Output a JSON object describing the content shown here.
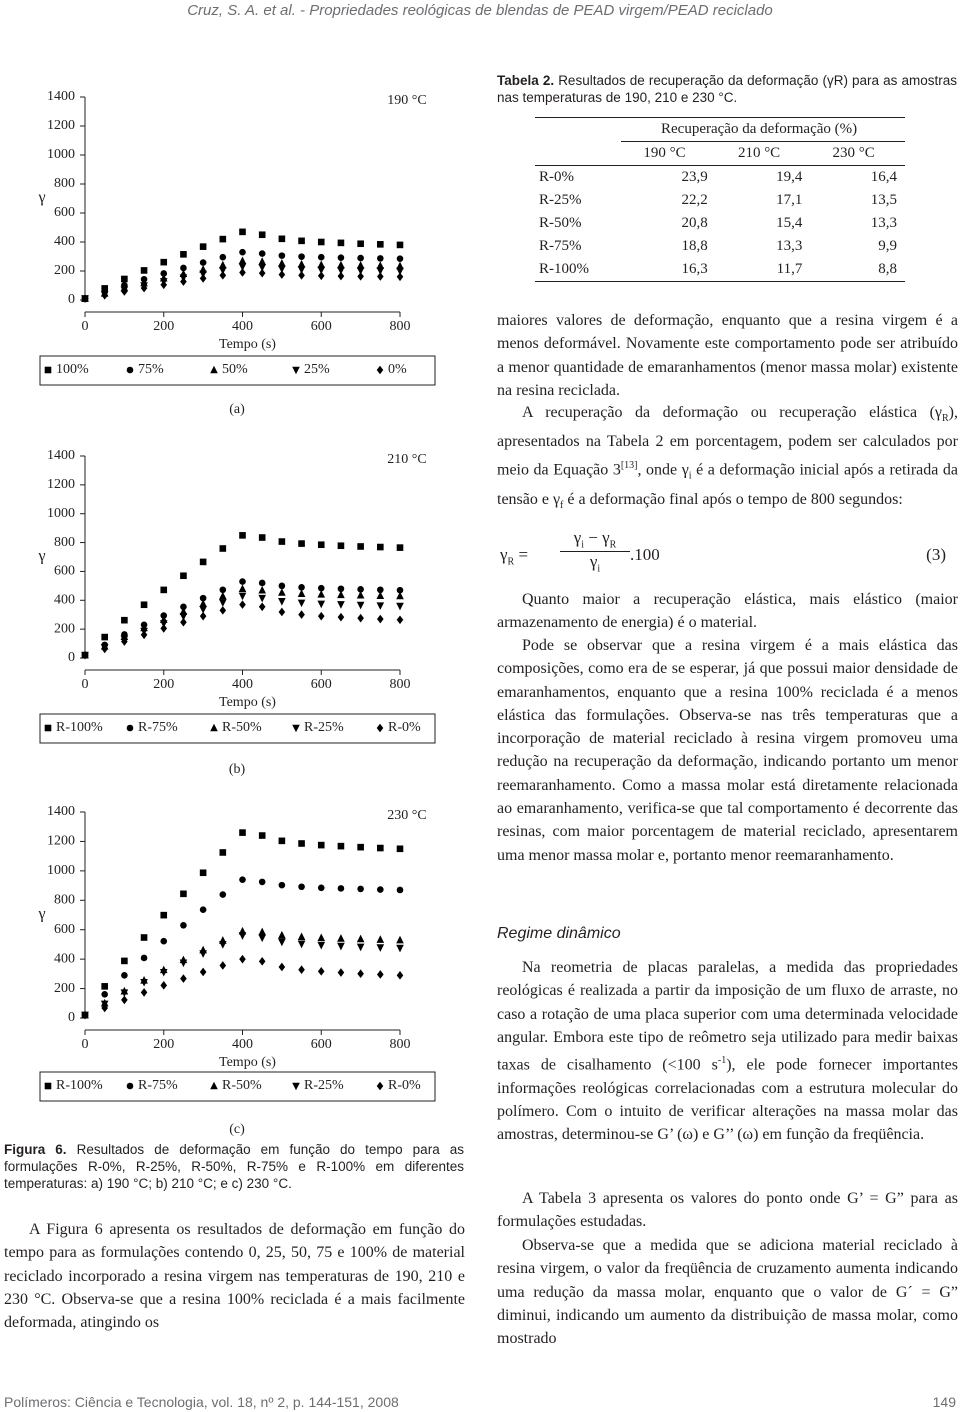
{
  "header": "Cruz, S. A. et al. - Propriedades reológicas de blendas de PEAD virgem/PEAD reciclado",
  "chart_data": [
    {
      "type": "scatter",
      "annotation": "190 °C",
      "panel": "(a)",
      "ylabel": "γ",
      "xlabel": "Tempo (s)",
      "xlim": [
        0,
        800
      ],
      "ylim": [
        0,
        1400
      ],
      "xticks": [
        0,
        200,
        400,
        600,
        800
      ],
      "yticks": [
        0,
        200,
        400,
        600,
        800,
        1000,
        1200,
        1400
      ],
      "x": [
        0,
        50,
        100,
        150,
        200,
        250,
        300,
        350,
        400,
        450,
        500,
        550,
        600,
        650,
        700,
        750,
        800
      ],
      "series": [
        {
          "name": "100%",
          "marker": "square",
          "color": "#000000",
          "values": [
            10,
            80,
            145,
            204,
            261,
            315,
            368,
            420,
            470,
            450,
            422,
            408,
            400,
            394,
            388,
            384,
            380
          ]
        },
        {
          "name": "75%",
          "marker": "circle",
          "color": "#000000",
          "values": [
            10,
            56,
            102,
            143,
            183,
            221,
            258,
            295,
            330,
            320,
            306,
            299,
            295,
            292,
            289,
            287,
            285
          ]
        },
        {
          "name": "50%",
          "marker": "triangle-up",
          "color": "#000000",
          "values": [
            10,
            46,
            83,
            117,
            150,
            181,
            211,
            241,
            270,
            265,
            253,
            247,
            243,
            241,
            239,
            237,
            235
          ]
        },
        {
          "name": "25%",
          "marker": "triangle-down",
          "color": "#000000",
          "values": [
            10,
            39,
            71,
            100,
            128,
            154,
            180,
            205,
            230,
            225,
            215,
            210,
            207,
            205,
            203,
            202,
            200
          ]
        },
        {
          "name": "0%",
          "marker": "diamond",
          "color": "#000000",
          "values": [
            10,
            32,
            59,
            82,
            105,
            127,
            149,
            170,
            190,
            185,
            175,
            170,
            167,
            165,
            163,
            162,
            160
          ]
        }
      ]
    },
    {
      "type": "scatter",
      "annotation": "210 °C",
      "panel": "(b)",
      "ylabel": "γ",
      "xlabel": "Tempo (s)",
      "xlim": [
        0,
        800
      ],
      "ylim": [
        0,
        1400
      ],
      "xticks": [
        0,
        200,
        400,
        600,
        800
      ],
      "yticks": [
        0,
        200,
        400,
        600,
        800,
        1000,
        1200,
        1400
      ],
      "x": [
        0,
        50,
        100,
        150,
        200,
        250,
        300,
        350,
        400,
        450,
        500,
        550,
        600,
        650,
        700,
        750,
        800
      ],
      "series": [
        {
          "name": "R-100%",
          "marker": "square",
          "color": "#000000",
          "values": [
            20,
            145,
            262,
            369,
            472,
            570,
            666,
            759,
            850,
            835,
            807,
            793,
            785,
            778,
            773,
            769,
            765
          ]
        },
        {
          "name": "R-75%",
          "marker": "circle",
          "color": "#000000",
          "values": [
            20,
            91,
            163,
            230,
            294,
            355,
            415,
            473,
            530,
            520,
            500,
            490,
            484,
            480,
            476,
            473,
            470
          ]
        },
        {
          "name": "R-50%",
          "marker": "triangle-up",
          "color": "#000000",
          "values": [
            20,
            82,
            148,
            208,
            266,
            322,
            376,
            429,
            480,
            470,
            454,
            446,
            441,
            438,
            435,
            432,
            430
          ]
        },
        {
          "name": "R-25%",
          "marker": "triangle-down",
          "color": "#000000",
          "values": [
            20,
            74,
            132,
            187,
            239,
            288,
            337,
            384,
            430,
            415,
            393,
            382,
            375,
            371,
            367,
            363,
            360
          ]
        },
        {
          "name": "R-0%",
          "marker": "diamond",
          "color": "#000000",
          "values": [
            20,
            63,
            114,
            161,
            205,
            248,
            290,
            330,
            370,
            355,
            319,
            301,
            290,
            283,
            276,
            270,
            265
          ]
        }
      ]
    },
    {
      "type": "scatter",
      "annotation": "230 °C",
      "panel": "(c)",
      "ylabel": "γ",
      "xlabel": "Tempo (s)",
      "xlim": [
        0,
        800
      ],
      "ylim": [
        0,
        1400
      ],
      "xticks": [
        0,
        200,
        400,
        600,
        800
      ],
      "yticks": [
        0,
        200,
        400,
        600,
        800,
        1000,
        1200,
        1400
      ],
      "x": [
        0,
        50,
        100,
        150,
        200,
        250,
        300,
        350,
        400,
        450,
        500,
        550,
        600,
        650,
        700,
        750,
        800
      ],
      "series": [
        {
          "name": "R-100%",
          "marker": "square",
          "color": "#000000",
          "values": [
            20,
            215,
            388,
            547,
            699,
            844,
            987,
            1125,
            1260,
            1240,
            1204,
            1186,
            1175,
            1168,
            1161,
            1155,
            1150
          ]
        },
        {
          "name": "R-75%",
          "marker": "circle",
          "color": "#000000",
          "values": [
            20,
            161,
            290,
            408,
            522,
            630,
            736,
            839,
            940,
            925,
            903,
            892,
            885,
            881,
            877,
            873,
            870
          ]
        },
        {
          "name": "R-50%",
          "marker": "triangle-up",
          "color": "#000000",
          "values": [
            20,
            101,
            182,
            256,
            327,
            395,
            462,
            527,
            590,
            585,
            563,
            552,
            545,
            541,
            537,
            533,
            530
          ]
        },
        {
          "name": "R-25%",
          "marker": "triangle-down",
          "color": "#000000",
          "values": [
            20,
            96,
            172,
            243,
            311,
            375,
            438,
            500,
            560,
            545,
            517,
            503,
            495,
            489,
            483,
            479,
            475
          ]
        },
        {
          "name": "R-0%",
          "marker": "diamond",
          "color": "#000000",
          "values": [
            20,
            68,
            123,
            174,
            222,
            268,
            313,
            357,
            400,
            385,
            347,
            328,
            317,
            309,
            301,
            296,
            290
          ]
        }
      ]
    }
  ],
  "figure_caption": {
    "label": "Figura 6.",
    "text": "Resultados de deformação em função do tempo para as formulações R-0%, R-25%, R-50%, R-75% e R-100% em diferentes temperaturas: a) 190 °C; b) 210 °C; e c) 230 °C."
  },
  "left_paragraph": "A Figura 6 apresenta os resultados de deformação em função do tempo para as formulações contendo 0, 25, 50, 75 e 100% de material reciclado incorporado a resina virgem nas temperaturas de 190, 210 e 230 °C. Observa-se que a resina 100% reciclada é a mais facilmente deformada, atingindo os",
  "table": {
    "caption_label": "Tabela 2.",
    "caption": "Resultados de recuperação da deformação (γR) para as amostras nas temperaturas de 190, 210 e 230 °C.",
    "group_header": "Recuperação da deformação (%)",
    "columns": [
      "190 °C",
      "210 °C",
      "230 °C"
    ],
    "rows": [
      [
        "R-0%",
        "23,9",
        "19,4",
        "16,4"
      ],
      [
        "R-25%",
        "22,2",
        "17,1",
        "13,5"
      ],
      [
        "R-50%",
        "20,8",
        "15,4",
        "13,3"
      ],
      [
        "R-75%",
        "18,8",
        "13,3",
        "9,9"
      ],
      [
        "R-100%",
        "16,3",
        "11,7",
        "8,8"
      ]
    ]
  },
  "body": {
    "p1": "maiores valores de deformação, enquanto que a resina virgem é a menos deformável. Novamente este comportamento pode ser atribuído a menor quantidade de emaranhamentos (menor massa molar) existente na resina reciclada.",
    "p2": [
      "A recuperação da deformação ou recuperação elástica (γ",
      "R",
      "), apresentados na Tabela 2 em porcentagem, podem ser calculados por meio da Equação 3",
      "[13]",
      ", onde γ",
      "i",
      " é a deformação inicial após a retirada da tensão e γ",
      "f",
      " é a deformação final após o tempo de 800 segundos:"
    ],
    "equation": {
      "lhs": "γ",
      "lhs_sub": "R",
      "eq": "=",
      "num_a": "γ",
      "num_a_sub": "i",
      "minus": "−",
      "num_b": "γ",
      "num_b_sub": "R",
      "den": "γ",
      "den_sub": "i",
      "factor": ".100",
      "number": "(3)"
    },
    "p3": "Quanto maior a recuperação elástica, mais elástico (maior armazenamento de energia) é o material.",
    "p4": "Pode se observar que a resina virgem é a mais elástica das composições, como era de se esperar, já que possui maior densidade de emaranhamentos, enquanto que a resina 100% reciclada é a menos elástica das formulações. Observa-se nas três temperaturas que a incorporação de material reciclado à resina virgem promoveu uma redução na recuperação da deformação, indicando portanto um menor reemaranhamento. Como a massa molar está diretamente relacionada ao emaranhamento, verifica-se que tal comportamento é decorrente das resinas, com maior porcentagem de material reciclado, apresentarem uma menor massa molar e, portanto menor reemaranhamento.",
    "heading": "Regime dinâmico",
    "p5": [
      "Na reometria de placas paralelas, a medida das propriedades reológicas é realizada a partir da imposição de um fluxo de arraste, no caso a rotação de uma placa superior com uma determinada velocidade angular. Embora este tipo de reômetro seja utilizado para medir baixas taxas de cisalhamento (<100 s",
      "-1",
      "), ele pode fornecer importantes informações reológicas correlacionadas com a estrutura molecular do polímero. Com o intuito de verificar alterações na massa molar das amostras, determinou-se G’ (ω) e G’’ (ω) em função da freqüência."
    ],
    "p6": "A Tabela 3 apresenta os valores do ponto onde G’ = G” para as formulações estudadas.",
    "p7": "Observa-se que a medida que se adiciona material reciclado à resina virgem, o valor da freqüência de cruzamento aumenta indicando uma redução da massa molar, enquanto que o valor de G´ = G” diminui, indicando um aumento da distribuição de massa molar, como mostrado"
  },
  "footer": {
    "journal": "Polímeros: Ciência e Tecnologia, vol. 18, nº 2, p. 144-151, 2008",
    "page": "149"
  }
}
